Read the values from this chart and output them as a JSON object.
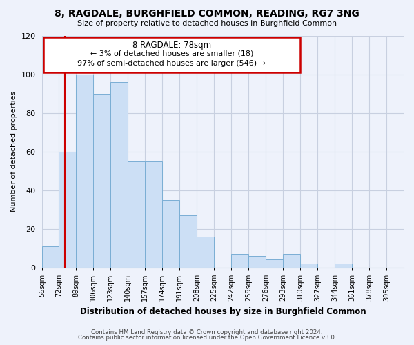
{
  "title": "8, RAGDALE, BURGHFIELD COMMON, READING, RG7 3NG",
  "subtitle": "Size of property relative to detached houses in Burghfield Common",
  "xlabel": "Distribution of detached houses by size in Burghfield Common",
  "ylabel": "Number of detached properties",
  "bar_left_edges": [
    56,
    72,
    89,
    106,
    123,
    140,
    157,
    174,
    191,
    208,
    225,
    242,
    259,
    276,
    293,
    310,
    327,
    344,
    361,
    378
  ],
  "bar_heights": [
    11,
    60,
    100,
    90,
    96,
    55,
    55,
    35,
    27,
    16,
    0,
    7,
    6,
    4,
    7,
    2,
    0,
    2,
    0,
    0
  ],
  "bin_width": 17,
  "tick_labels": [
    "56sqm",
    "72sqm",
    "89sqm",
    "106sqm",
    "123sqm",
    "140sqm",
    "157sqm",
    "174sqm",
    "191sqm",
    "208sqm",
    "225sqm",
    "242sqm",
    "259sqm",
    "276sqm",
    "293sqm",
    "310sqm",
    "327sqm",
    "344sqm",
    "361sqm",
    "378sqm",
    "395sqm"
  ],
  "bar_color": "#ccdff5",
  "bar_edge_color": "#7aaed4",
  "vline_x": 78,
  "vline_color": "#cc0000",
  "ylim": [
    0,
    120
  ],
  "yticks": [
    0,
    20,
    40,
    60,
    80,
    100,
    120
  ],
  "annotation_title": "8 RAGDALE: 78sqm",
  "annotation_line1": "← 3% of detached houses are smaller (18)",
  "annotation_line2": "97% of semi-detached houses are larger (546) →",
  "annotation_box_color": "#cc0000",
  "footer1": "Contains HM Land Registry data © Crown copyright and database right 2024.",
  "footer2": "Contains public sector information licensed under the Open Government Licence v3.0.",
  "background_color": "#eef2fb",
  "grid_color": "#c8d0e0"
}
